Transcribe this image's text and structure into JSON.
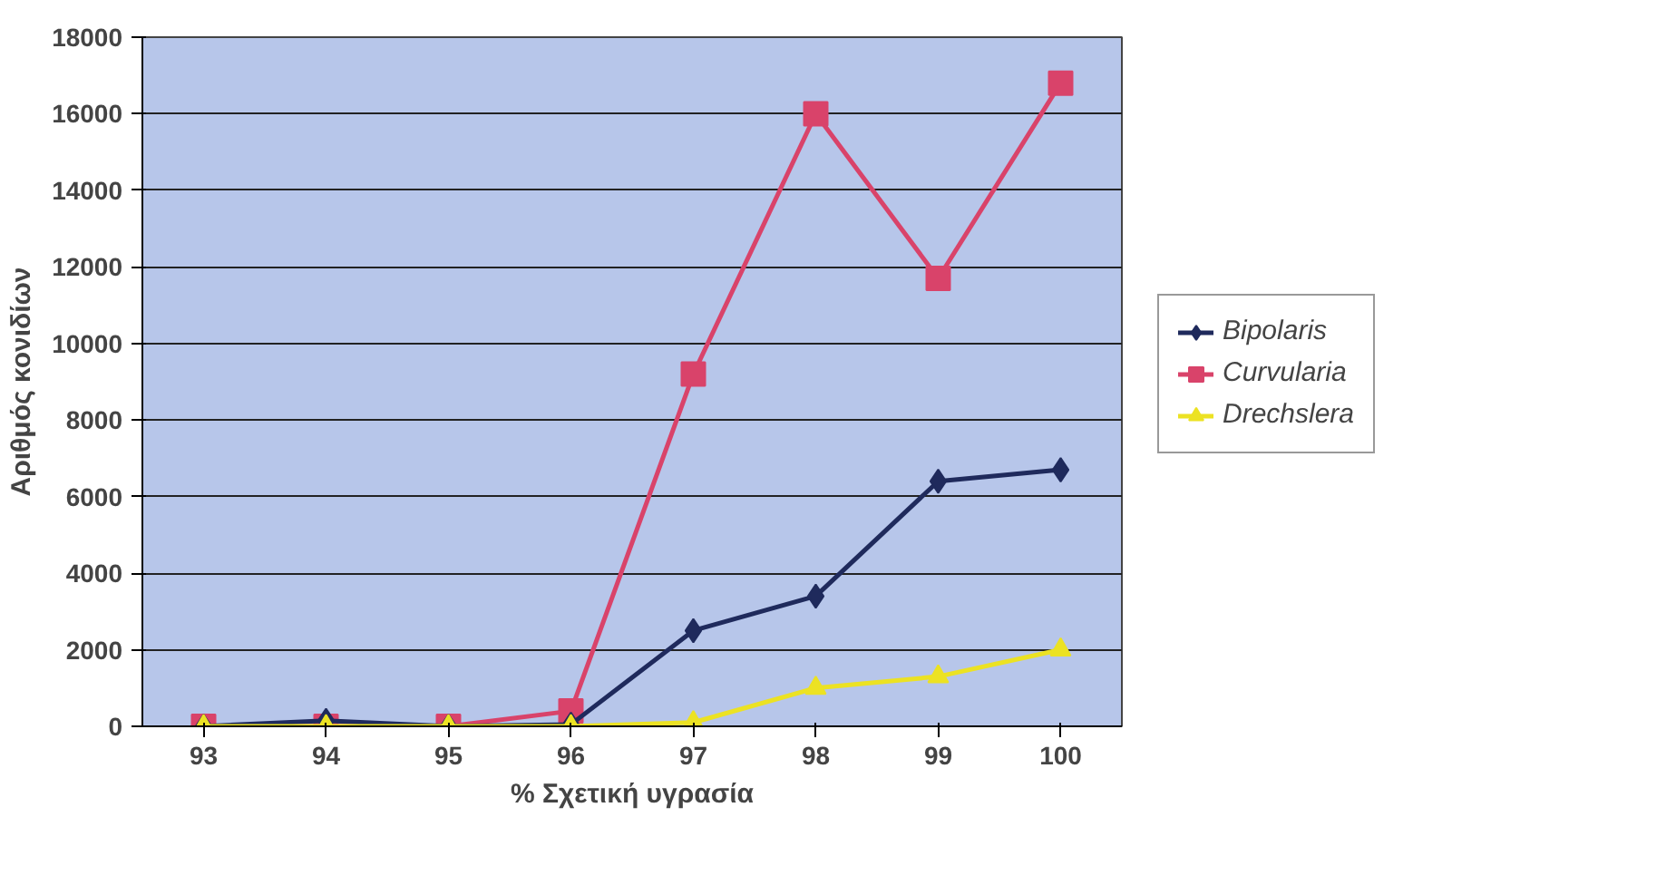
{
  "chart_data": {
    "type": "line",
    "xlabel": "% Σχετική υγρασία",
    "ylabel": "Αριθμός κονιδίων",
    "categories": [
      "93",
      "94",
      "95",
      "96",
      "97",
      "98",
      "99",
      "100"
    ],
    "ylim": [
      0,
      18000
    ],
    "yticks": [
      0,
      2000,
      4000,
      6000,
      8000,
      10000,
      12000,
      14000,
      16000,
      18000
    ],
    "grid": "y",
    "legend": "right",
    "series": [
      {
        "name": "Bipolaris",
        "color": "#1f2a5c",
        "marker": "diamond",
        "values": [
          0,
          150,
          0,
          50,
          2500,
          3400,
          6400,
          6700
        ]
      },
      {
        "name": "Curvularia",
        "color": "#d9436a",
        "marker": "square",
        "values": [
          0,
          0,
          0,
          400,
          9200,
          16000,
          11700,
          16800
        ]
      },
      {
        "name": "Drechslera",
        "color": "#ece223",
        "marker": "triangle",
        "values": [
          0,
          0,
          0,
          0,
          100,
          1000,
          1300,
          2000
        ]
      }
    ]
  }
}
